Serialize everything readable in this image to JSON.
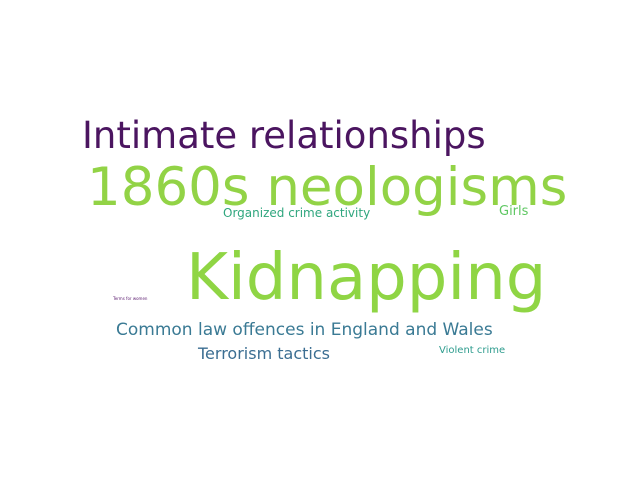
{
  "words": [
    {
      "id": "w-intimate",
      "text": "Intimate relationships",
      "color": "#4b1560"
    },
    {
      "id": "w-1860s",
      "text": "1860s neologisms",
      "color": "#92d346"
    },
    {
      "id": "w-organized",
      "text": "Organized crime activity",
      "color": "#2fa67e"
    },
    {
      "id": "w-girls",
      "text": "Girls",
      "color": "#5ec762"
    },
    {
      "id": "w-kidnapping",
      "text": "Kidnapping",
      "color": "#8fd544"
    },
    {
      "id": "w-terms",
      "text": "Terms for women",
      "color": "#5a1a6e"
    },
    {
      "id": "w-common",
      "text": "Common law offences in England and Wales",
      "color": "#3a7a94"
    },
    {
      "id": "w-terrorism",
      "text": "Terrorism tactics",
      "color": "#3b6e92"
    },
    {
      "id": "w-violent",
      "text": "Violent crime",
      "color": "#2e9c8e"
    }
  ]
}
